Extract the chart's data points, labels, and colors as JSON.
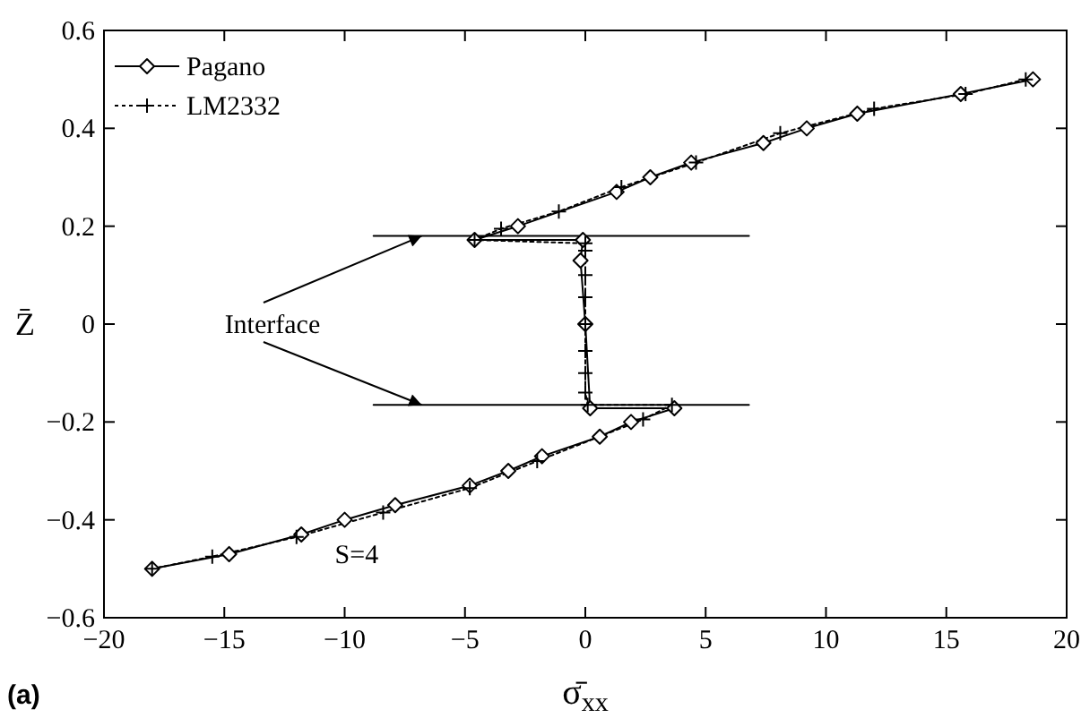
{
  "chart_data": {
    "type": "line",
    "xlabel": "σ̄$_{xx}$",
    "ylabel": "Z̄",
    "xlim": [
      -20,
      20
    ],
    "xticks": [
      -20,
      -15,
      -10,
      -5,
      0,
      5,
      10,
      15,
      20
    ],
    "ylim": [
      -0.6,
      0.6
    ],
    "yticks": [
      -0.6,
      -0.4,
      -0.2,
      0,
      0.2,
      0.4,
      0.6
    ],
    "grid": false,
    "legend": "top left",
    "annotations": [
      {
        "text": "Interface",
        "x": -6.8,
        "y": 0.18
      },
      "S=4",
      "(a)"
    ],
    "series": [
      {
        "name": "Pagano",
        "color": "#000000",
        "marker": "diamond",
        "line_style": "solid",
        "x": [
          18.6,
          15.6,
          11.3,
          9.2,
          7.4,
          4.4,
          2.7,
          1.3,
          -2.8,
          -4.6,
          -0.1,
          -0.2,
          0,
          0.2,
          3.7,
          1.9,
          0.6,
          -1.8,
          -3.2,
          -4.8,
          -7.9,
          -10,
          -11.8,
          -14.8,
          -18
        ],
        "values": [
          0.5,
          0.47,
          0.43,
          0.4,
          0.37,
          0.33,
          0.3,
          0.27,
          0.2,
          0.172,
          0.172,
          0.13,
          0,
          -0.172,
          -0.172,
          -0.2,
          -0.23,
          -0.27,
          -0.3,
          -0.33,
          -0.37,
          -0.4,
          -0.43,
          -0.47,
          -0.5
        ]
      },
      {
        "name": "LM2332",
        "color": "#000000",
        "marker": "cross",
        "line_style": "dotted",
        "x": [
          18.3,
          15.8,
          12,
          8.1,
          4.6,
          1.5,
          -1.1,
          -3.5,
          -4.6,
          0,
          0,
          0,
          0,
          0,
          0,
          0,
          0,
          0.1,
          3.6,
          2.4,
          -2,
          -4.8,
          -8.4,
          -12,
          -15.5,
          -18
        ],
        "values": [
          0.5,
          0.47,
          0.44,
          0.39,
          0.33,
          0.28,
          0.23,
          0.195,
          0.172,
          0.165,
          0.15,
          0.1,
          0.055,
          0,
          -0.055,
          -0.1,
          -0.14,
          -0.165,
          -0.165,
          -0.195,
          -0.28,
          -0.335,
          -0.385,
          -0.435,
          -0.475,
          -0.5
        ]
      },
      {
        "color": "#000000",
        "marker": "none",
        "line_style": "solid",
        "x": [
          -8.8,
          6.8
        ],
        "values": [
          0.18,
          0.18
        ]
      },
      {
        "color": "#000000",
        "marker": "none",
        "line_style": "solid",
        "x": [
          -8.8,
          6.8
        ],
        "values": [
          -0.165,
          -0.165
        ]
      }
    ]
  }
}
